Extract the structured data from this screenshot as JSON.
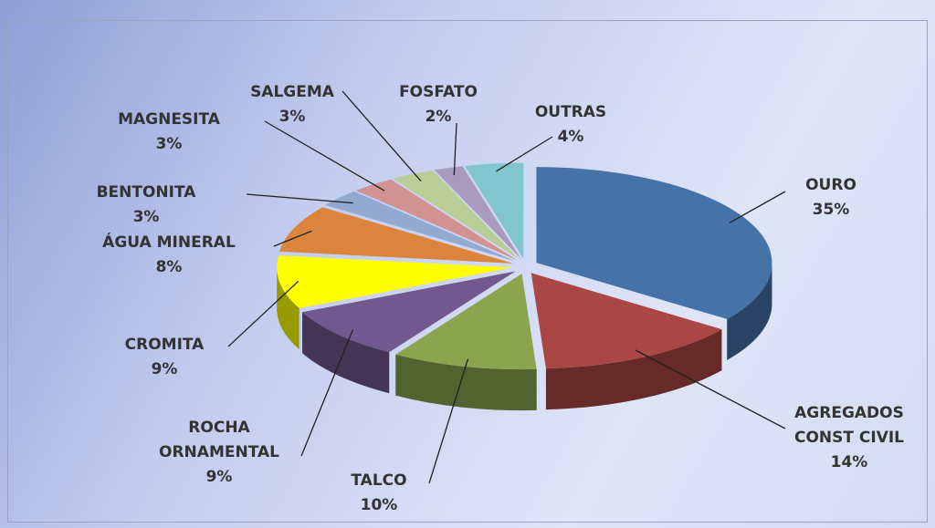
{
  "chart_data": {
    "type": "pie",
    "categories": [
      "OURO",
      "AGREGADOS CONST CIVIL",
      "TALCO",
      "ROCHA ORNAMENTAL",
      "CROMITA",
      "ÁGUA MINERAL",
      "BENTONITA",
      "MAGNESITA",
      "SALGEMA",
      "FOSFATO",
      "OUTRAS"
    ],
    "values": [
      35,
      14,
      10,
      9,
      9,
      8,
      3,
      3,
      3,
      2,
      4
    ],
    "value_labels": [
      "35%",
      "14%",
      "10%",
      "9%",
      "9%",
      "8%",
      "3%",
      "3%",
      "3%",
      "2%",
      "4%"
    ],
    "colors": [
      "#4572a7",
      "#aa4643",
      "#89a54e",
      "#71588f",
      "#ffff00",
      "#db843d",
      "#93a9cf",
      "#d19392",
      "#b9cd96",
      "#a99bbd",
      "#80c5d0"
    ]
  }
}
